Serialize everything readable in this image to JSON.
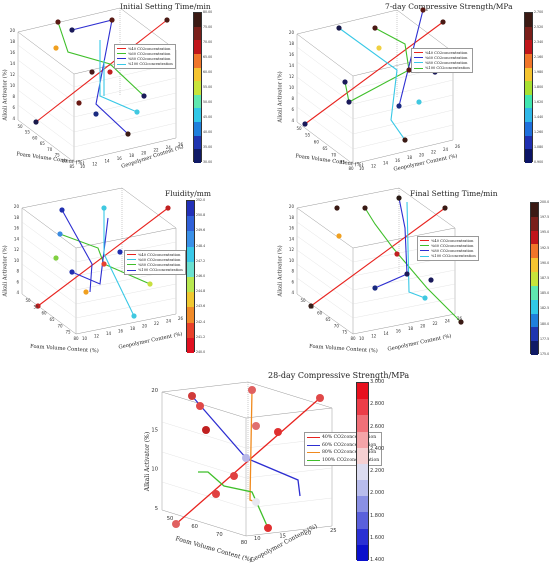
{
  "colorbar_palettes": {
    "panel_1": [
      "#3b1a14",
      "#7a1f1a",
      "#c0151a",
      "#f0752a",
      "#f5c430",
      "#c8e43a",
      "#5fe8b0",
      "#30c8e8",
      "#1f7fdc",
      "#1f35b0",
      "#101a66"
    ],
    "panel_2": [
      "#3b1a14",
      "#7a1f1a",
      "#c0151a",
      "#f0752a",
      "#f5c430",
      "#a8e030",
      "#40e6b0",
      "#30b8e8",
      "#1f6fdc",
      "#1f2fb0",
      "#0b1466"
    ],
    "panel_3": [
      "#2230b8",
      "#3060d8",
      "#3a90e8",
      "#3ac8e8",
      "#6ae0d0",
      "#b8e850",
      "#f0c830",
      "#f08a28",
      "#e8402a",
      "#e01020"
    ],
    "panel_4": [
      "#3b1a14",
      "#7a1f1a",
      "#c0151a",
      "#f0752a",
      "#f5c430",
      "#c8e43a",
      "#5fe8b0",
      "#30c8e8",
      "#1f7fdc",
      "#1f35b0",
      "#101a66"
    ],
    "panel_5": [
      "#e8101e",
      "#ec3d48",
      "#f07078",
      "#f4a4a8",
      "#f5d0d2",
      "#dcdcf0",
      "#b8bcec",
      "#8a90e4",
      "#5a60dc",
      "#2a30d4",
      "#0a10cc"
    ]
  },
  "chart_data": [
    {
      "type": "scatter3d",
      "title": "Initial Setting Time/min",
      "xlabel": "Foam Volume Content (%)",
      "ylabel": "Geopolymer Content (%)",
      "zlabel": "Alkali Activator (%)",
      "xticks": [
        "50",
        "55",
        "60",
        "65",
        "70",
        "75",
        "80",
        "85"
      ],
      "yticks": [
        "10",
        "12",
        "14",
        "16",
        "18",
        "20",
        "22",
        "24",
        "26"
      ],
      "zticks": [
        "4",
        "6",
        "8",
        "10",
        "12",
        "14",
        "16",
        "18",
        "20"
      ],
      "colorbar_ticks": [
        "80.00",
        "75.00",
        "70.00",
        "65.00",
        "60.00",
        "55.00",
        "50.00",
        "45.00",
        "40.00",
        "35.00",
        "30.00"
      ],
      "legend": [
        {
          "label": "%40 CO2concentration",
          "color": "#e8231f"
        },
        {
          "label": "%60 CO2concentration",
          "color": "#3fbf2a"
        },
        {
          "label": "%80 CO2concentration",
          "color": "#2d2ed1"
        },
        {
          "label": "%100 CO2concentration",
          "color": "#38c8e6"
        }
      ]
    },
    {
      "type": "scatter3d",
      "title": "7-day Compressive Strength/MPa",
      "xlabel": "Foam Volume Content (%)",
      "ylabel": "Geopolymer Content (%)",
      "zlabel": "Alkali Activator (%)",
      "xticks": [
        "50",
        "55",
        "60",
        "65",
        "70",
        "75",
        "80"
      ],
      "yticks": [
        "10",
        "12",
        "14",
        "16",
        "18",
        "20",
        "22",
        "24",
        "26"
      ],
      "zticks": [
        "4",
        "6",
        "8",
        "10",
        "12",
        "14",
        "16",
        "18",
        "20"
      ],
      "colorbar_ticks": [
        "2.700",
        "2.520",
        "2.340",
        "2.160",
        "1.980",
        "1.800",
        "1.620",
        "1.440",
        "1.260",
        "1.080",
        "0.900"
      ],
      "legend": [
        {
          "label": "%40 CO2concentration",
          "color": "#e8231f"
        },
        {
          "label": "%60 CO2concentration",
          "color": "#2d2ed1"
        },
        {
          "label": "%80 CO2concentration",
          "color": "#38c8e6"
        },
        {
          "label": "%100 CO2concentration",
          "color": "#3fbf2a"
        }
      ]
    },
    {
      "type": "scatter3d",
      "title": "Fluidity/mm",
      "xlabel": "Foam Volume Content (%)",
      "ylabel": "Geopolymer Content (%)",
      "zlabel": "Alkali Activator (%)",
      "xticks": [
        "50",
        "55",
        "60",
        "65",
        "70",
        "75",
        "80"
      ],
      "yticks": [
        "10",
        "12",
        "14",
        "16",
        "18",
        "20",
        "22",
        "24",
        "26"
      ],
      "zticks": [
        "4",
        "6",
        "8",
        "10",
        "12",
        "14",
        "16",
        "18",
        "20"
      ],
      "colorbar_ticks": [
        "252.0",
        "250.8",
        "249.6",
        "248.4",
        "247.2",
        "246.0",
        "244.8",
        "243.6",
        "242.4",
        "241.2",
        "240.0"
      ],
      "legend": [
        {
          "label": "%40 CO2concentration",
          "color": "#e8231f"
        },
        {
          "label": "%60 CO2concentration",
          "color": "#38c8e6"
        },
        {
          "label": "%80 CO2concentration",
          "color": "#3fbf2a"
        },
        {
          "label": "%100 CO2concentration",
          "color": "#2d2ed1"
        }
      ]
    },
    {
      "type": "scatter3d",
      "title": "Final Setting Time/min",
      "xlabel": "Foam Volume Content (%)",
      "ylabel": "Geopolymer Content (%)",
      "zlabel": "Alkali Activator (%)",
      "xticks": [
        "50",
        "55",
        "60",
        "65",
        "70",
        "75",
        "80"
      ],
      "yticks": [
        "10",
        "12",
        "14",
        "16",
        "18",
        "20",
        "22",
        "24",
        "26"
      ],
      "zticks": [
        "4",
        "6",
        "8",
        "10",
        "12",
        "14",
        "16",
        "18",
        "20"
      ],
      "colorbar_ticks": [
        "200.0",
        "197.5",
        "195.0",
        "192.5",
        "190.0",
        "187.5",
        "185.0",
        "182.5",
        "180.0",
        "177.5",
        "175.0"
      ],
      "legend": [
        {
          "label": "%40 CO2concentration",
          "color": "#e8231f"
        },
        {
          "label": "%60 CO2concentration",
          "color": "#3fbf2a"
        },
        {
          "label": "%80 CO2concentration",
          "color": "#2d2ed1"
        },
        {
          "label": "%100 CO2concentration",
          "color": "#38c8e6"
        }
      ]
    },
    {
      "type": "scatter3d",
      "title": "28-day Compressive Strength/MPa",
      "xlabel": "Foam Volume Content (%)",
      "ylabel": "Geopolymer Content (%)",
      "zlabel": "Alkali Activator (%)",
      "xticks": [
        "50",
        "60",
        "70",
        "80"
      ],
      "yticks": [
        "10",
        "15",
        "20",
        "25"
      ],
      "zticks": [
        "5",
        "10",
        "15",
        "20"
      ],
      "colorbar_ticks": [
        "3.000",
        "2.800",
        "2.600",
        "2.400",
        "2.200",
        "2.000",
        "1.800",
        "1.600",
        "1.400"
      ],
      "legend": [
        {
          "label": "40% CO2concentration",
          "color": "#e8231f"
        },
        {
          "label": "60% CO2concentration",
          "color": "#2d2ed1"
        },
        {
          "label": "80% CO2concentration",
          "color": "#f08a1e"
        },
        {
          "label": "100% CO2concentration",
          "color": "#3fbf2a"
        }
      ]
    }
  ]
}
